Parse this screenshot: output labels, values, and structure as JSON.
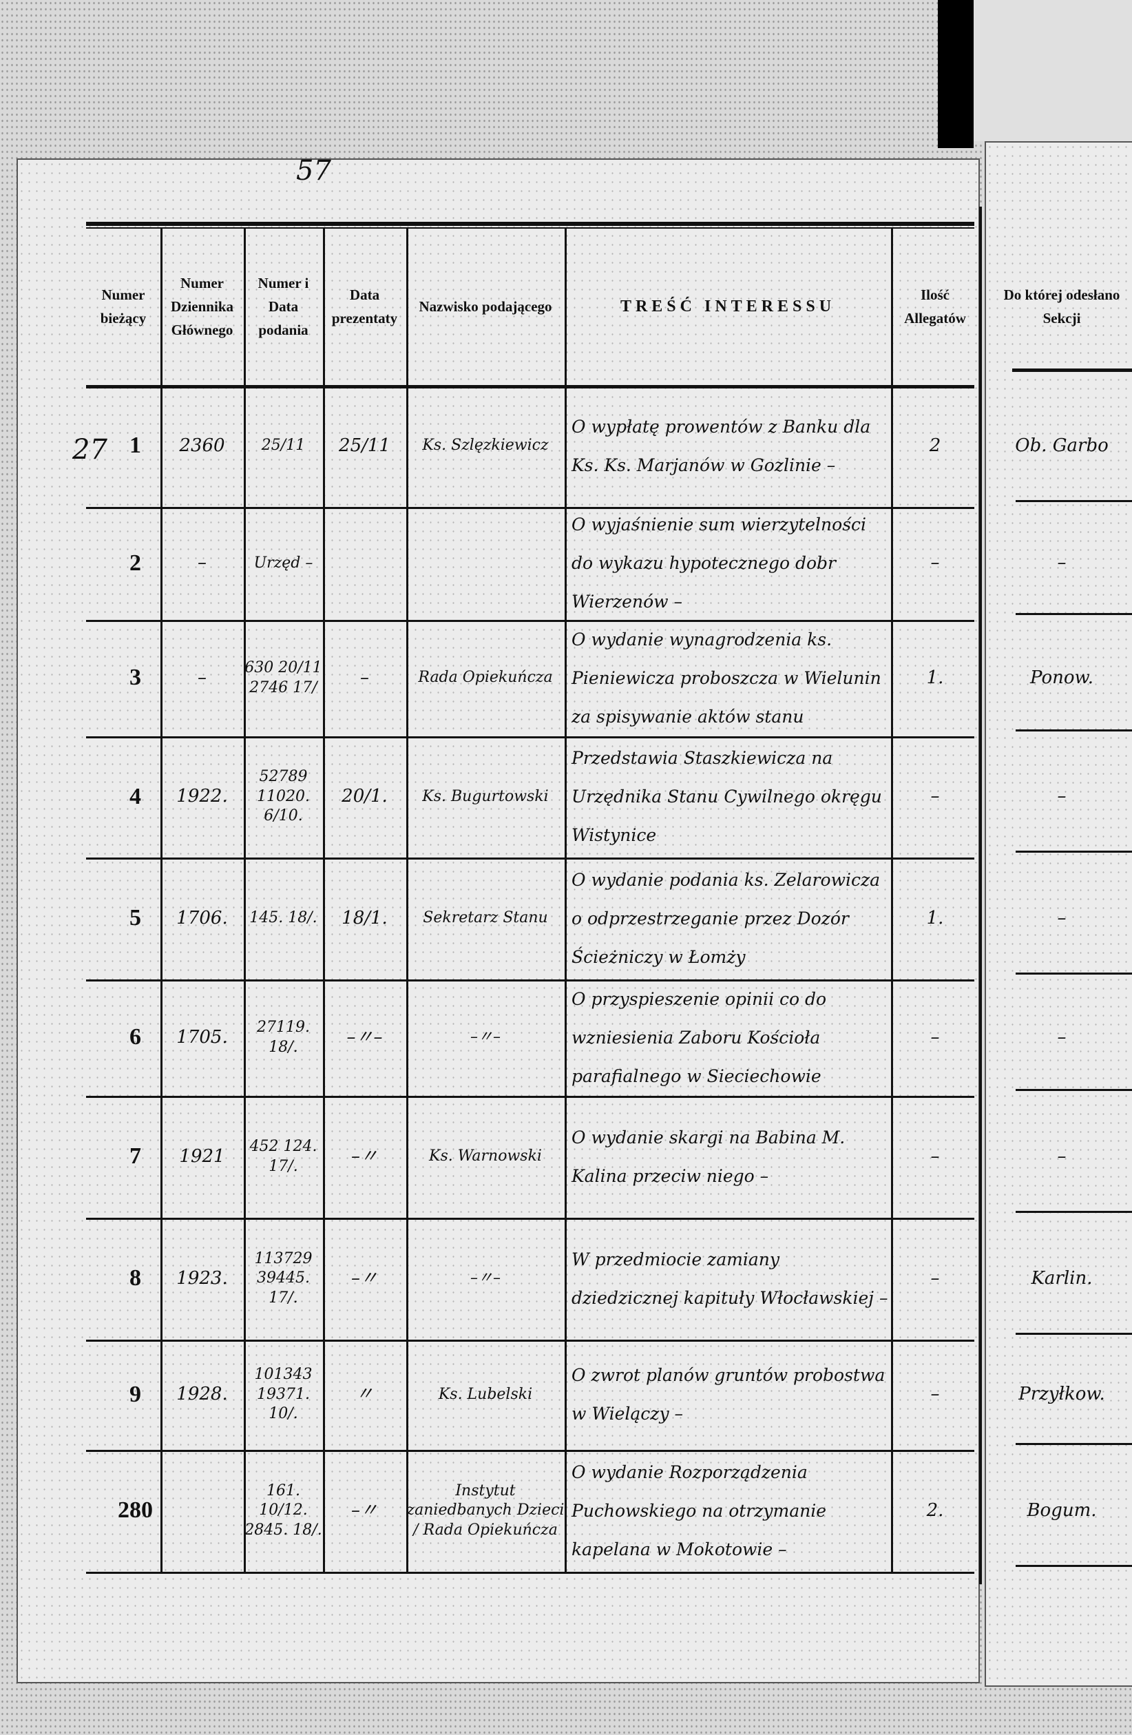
{
  "page_number": "57",
  "headers": [
    "Numer bieżący",
    "Numer Dziennika Głównego",
    "Numer i Data podania",
    "Data prezentaty",
    "Nazwisko podającego",
    "TREŚĆ INTERESSU",
    "Ilość Allegatów",
    "Do której odesłano Sekcji"
  ],
  "margin_note": "27",
  "rows": [
    {
      "n": "1",
      "dz": "2360",
      "nd": "25/11",
      "dp": "25/11",
      "name": "Ks. Szlęzkiewicz",
      "tresc": "O wypłatę prowentów z Banku dla Ks. Ks. Marjanów w Gozlinie –",
      "ill": "2",
      "sek": "Ob. Garbo"
    },
    {
      "n": "2",
      "dz": "–",
      "nd": "Urzęd –",
      "dp": "",
      "name": "",
      "tresc": "O wyjaśnienie sum wierzytelności do wykazu hypotecznego dobr Wierzenów –",
      "ill": "–",
      "sek": "–"
    },
    {
      "n": "3",
      "dz": "–",
      "nd": "630 20/11 2746 17/",
      "dp": "–",
      "name": "Rada Opiekuńcza",
      "tresc": "O wydanie wynagrodzenia ks. Pieniewicza proboszcza w Wielunin za spisywanie aktów stanu",
      "ill": "1.",
      "sek": "Ponow."
    },
    {
      "n": "4",
      "dz": "1922.",
      "nd": "52789 11020. 6/10.",
      "dp": "20/1.",
      "name": "Ks. Bugurtowski",
      "tresc": "Przedstawia Staszkiewicza na Urzędnika Stanu Cywilnego okręgu Wistynice",
      "ill": "–",
      "sek": "–"
    },
    {
      "n": "5",
      "dz": "1706.",
      "nd": "145. 18/.",
      "dp": "18/1.",
      "name": "Sekretarz Stanu",
      "tresc": "O wydanie podania ks. Zelarowicza o odprzestrzeganie przez Dozór Ścieżniczy w Łomży",
      "ill": "1.",
      "sek": "–"
    },
    {
      "n": "6",
      "dz": "1705.",
      "nd": "27119. 18/.",
      "dp": "–〃–",
      "name": "–〃–",
      "tresc": "O przyspieszenie opinii co do wzniesienia Zaboru Kościoła parafialnego w Sieciechowie",
      "ill": "–",
      "sek": "–"
    },
    {
      "n": "7",
      "dz": "1921",
      "nd": "452 124. 17/.",
      "dp": "–〃",
      "name": "Ks. Warnowski",
      "tresc": "O wydanie skargi na Babina M. Kalina przeciw niego –",
      "ill": "–",
      "sek": "–"
    },
    {
      "n": "8",
      "dz": "1923.",
      "nd": "113729 39445. 17/.",
      "dp": "–〃",
      "name": "–〃–",
      "tresc": "W przedmiocie zamiany dziedzicznej kapituły Włocławskiej –",
      "ill": "–",
      "sek": "Karlin."
    },
    {
      "n": "9",
      "dz": "1928.",
      "nd": "101343 19371. 10/.",
      "dp": "〃",
      "name": "Ks. Lubelski",
      "tresc": "O zwrot planów gruntów probostwa w Wielączy –",
      "ill": "–",
      "sek": "Przyłkow."
    },
    {
      "n": "280",
      "dz": "",
      "nd": "161. 10/12. 2845. 18/.",
      "dp": "–〃",
      "name": "Instytut zaniedbanych Dzieci / Rada Opiekuńcza",
      "tresc": "O wydanie Rozporządzenia Puchowskiego na otrzymanie kapelana w Mokotowie –",
      "ill": "2.",
      "sek": "Bogum."
    }
  ]
}
